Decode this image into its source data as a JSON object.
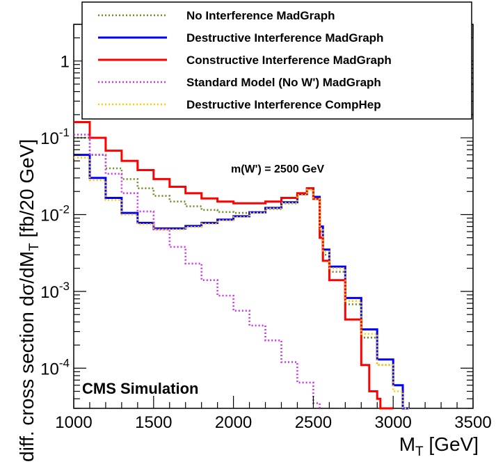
{
  "chart_data": {
    "type": "line",
    "ylabel": "diff. cross section dσ/dM",
    "ylabel_sub": "T",
    "ylabel_units": " [fb/20 GeV]",
    "xlabel": "M",
    "xlabel_sub": "T",
    "xlabel_units": " [GeV]",
    "xlim": [
      1000,
      3500
    ],
    "ylim": [
      3e-05,
      3
    ],
    "yscale": "log",
    "xticks": [
      1000,
      1500,
      2000,
      2500,
      3000,
      3500
    ],
    "yticks": [
      {
        "value": 1,
        "base": "1",
        "exp": ""
      },
      {
        "value": 0.1,
        "base": "10",
        "exp": "-1"
      },
      {
        "value": 0.01,
        "base": "10",
        "exp": "-2"
      },
      {
        "value": 0.001,
        "base": "10",
        "exp": "-3"
      },
      {
        "value": 0.0001,
        "base": "10",
        "exp": "-4"
      }
    ],
    "annotations": {
      "mass": "m(W') = 2500 GeV",
      "cms": "CMS Simulation"
    },
    "legend_placement": "top",
    "series": [
      {
        "name": "No Interference MadGraph",
        "color": "#6b8e23",
        "style": "dotted",
        "x": [
          1000,
          1100,
          1200,
          1300,
          1400,
          1500,
          1600,
          1700,
          1800,
          1900,
          2000,
          2100,
          2200,
          2300,
          2400,
          2460,
          2500,
          2540,
          2560,
          2600,
          2700,
          2800,
          2900,
          3000,
          3060,
          3100
        ],
        "y": [
          0.1,
          0.06,
          0.04,
          0.029,
          0.022,
          0.0175,
          0.0148,
          0.0128,
          0.0115,
          0.0108,
          0.0105,
          0.0108,
          0.0118,
          0.014,
          0.0185,
          0.022,
          0.017,
          0.006,
          0.003,
          0.0018,
          0.00068,
          0.00025,
          0.00011,
          6e-05,
          3e-05,
          3e-05
        ]
      },
      {
        "name": "Destructive Interference MadGraph",
        "color": "#0000ff",
        "style": "solid",
        "x": [
          1000,
          1100,
          1200,
          1300,
          1400,
          1500,
          1600,
          1700,
          1800,
          1900,
          2000,
          2100,
          2200,
          2300,
          2400,
          2460,
          2500,
          2540,
          2560,
          2600,
          2700,
          2800,
          2900,
          3000,
          3060,
          3100
        ],
        "y": [
          0.06,
          0.03,
          0.0165,
          0.0105,
          0.0078,
          0.0066,
          0.0066,
          0.0071,
          0.0078,
          0.0086,
          0.0095,
          0.0107,
          0.0122,
          0.0145,
          0.0185,
          0.022,
          0.017,
          0.007,
          0.0035,
          0.0021,
          0.00082,
          0.00032,
          0.00013,
          6e-05,
          3e-05,
          3e-05
        ]
      },
      {
        "name": "Constructive Interference MadGraph",
        "color": "#ff0000",
        "style": "solid",
        "x": [
          1000,
          1100,
          1200,
          1300,
          1400,
          1500,
          1600,
          1700,
          1800,
          1900,
          2000,
          2100,
          2200,
          2300,
          2400,
          2460,
          2500,
          2540,
          2560,
          2600,
          2700,
          2800,
          2850,
          2900,
          2920,
          2960,
          3000
        ],
        "y": [
          0.16,
          0.1,
          0.068,
          0.05,
          0.038,
          0.029,
          0.023,
          0.019,
          0.0162,
          0.0148,
          0.014,
          0.014,
          0.0148,
          0.0165,
          0.019,
          0.022,
          0.016,
          0.005,
          0.0025,
          0.0014,
          0.00043,
          0.00011,
          5e-05,
          4e-05,
          3e-05,
          3e-05,
          3e-05
        ]
      },
      {
        "name": "Standard Model (No W') MadGraph",
        "color": "#cc33ee",
        "style": "dotted",
        "x": [
          1000,
          1100,
          1200,
          1300,
          1400,
          1500,
          1600,
          1700,
          1800,
          1900,
          2000,
          2100,
          2200,
          2300,
          2400,
          2500,
          2540
        ],
        "y": [
          0.11,
          0.06,
          0.034,
          0.019,
          0.011,
          0.0064,
          0.0038,
          0.0023,
          0.0014,
          0.00088,
          0.00056,
          0.00036,
          0.00023,
          0.00012,
          6.5e-05,
          3.5e-05,
          3e-05
        ]
      },
      {
        "name": "Destructive Interference CompHep",
        "color": "#ffcc00",
        "style": "dotted",
        "x": [
          1000,
          1100,
          1200,
          1300,
          1400,
          1500,
          1600,
          1700,
          1800,
          1900,
          2000,
          2100,
          2200,
          2300,
          2400,
          2460,
          2500,
          2540,
          2560,
          2600,
          2700,
          2800,
          2900,
          3000,
          3060,
          3100
        ],
        "y": [
          0.055,
          0.028,
          0.0155,
          0.01,
          0.0075,
          0.0064,
          0.0064,
          0.0069,
          0.0076,
          0.0084,
          0.0093,
          0.0105,
          0.012,
          0.0142,
          0.018,
          0.021,
          0.016,
          0.0065,
          0.0033,
          0.002,
          0.00075,
          0.00028,
          0.00011,
          5e-05,
          3e-05,
          3e-05
        ]
      }
    ]
  }
}
